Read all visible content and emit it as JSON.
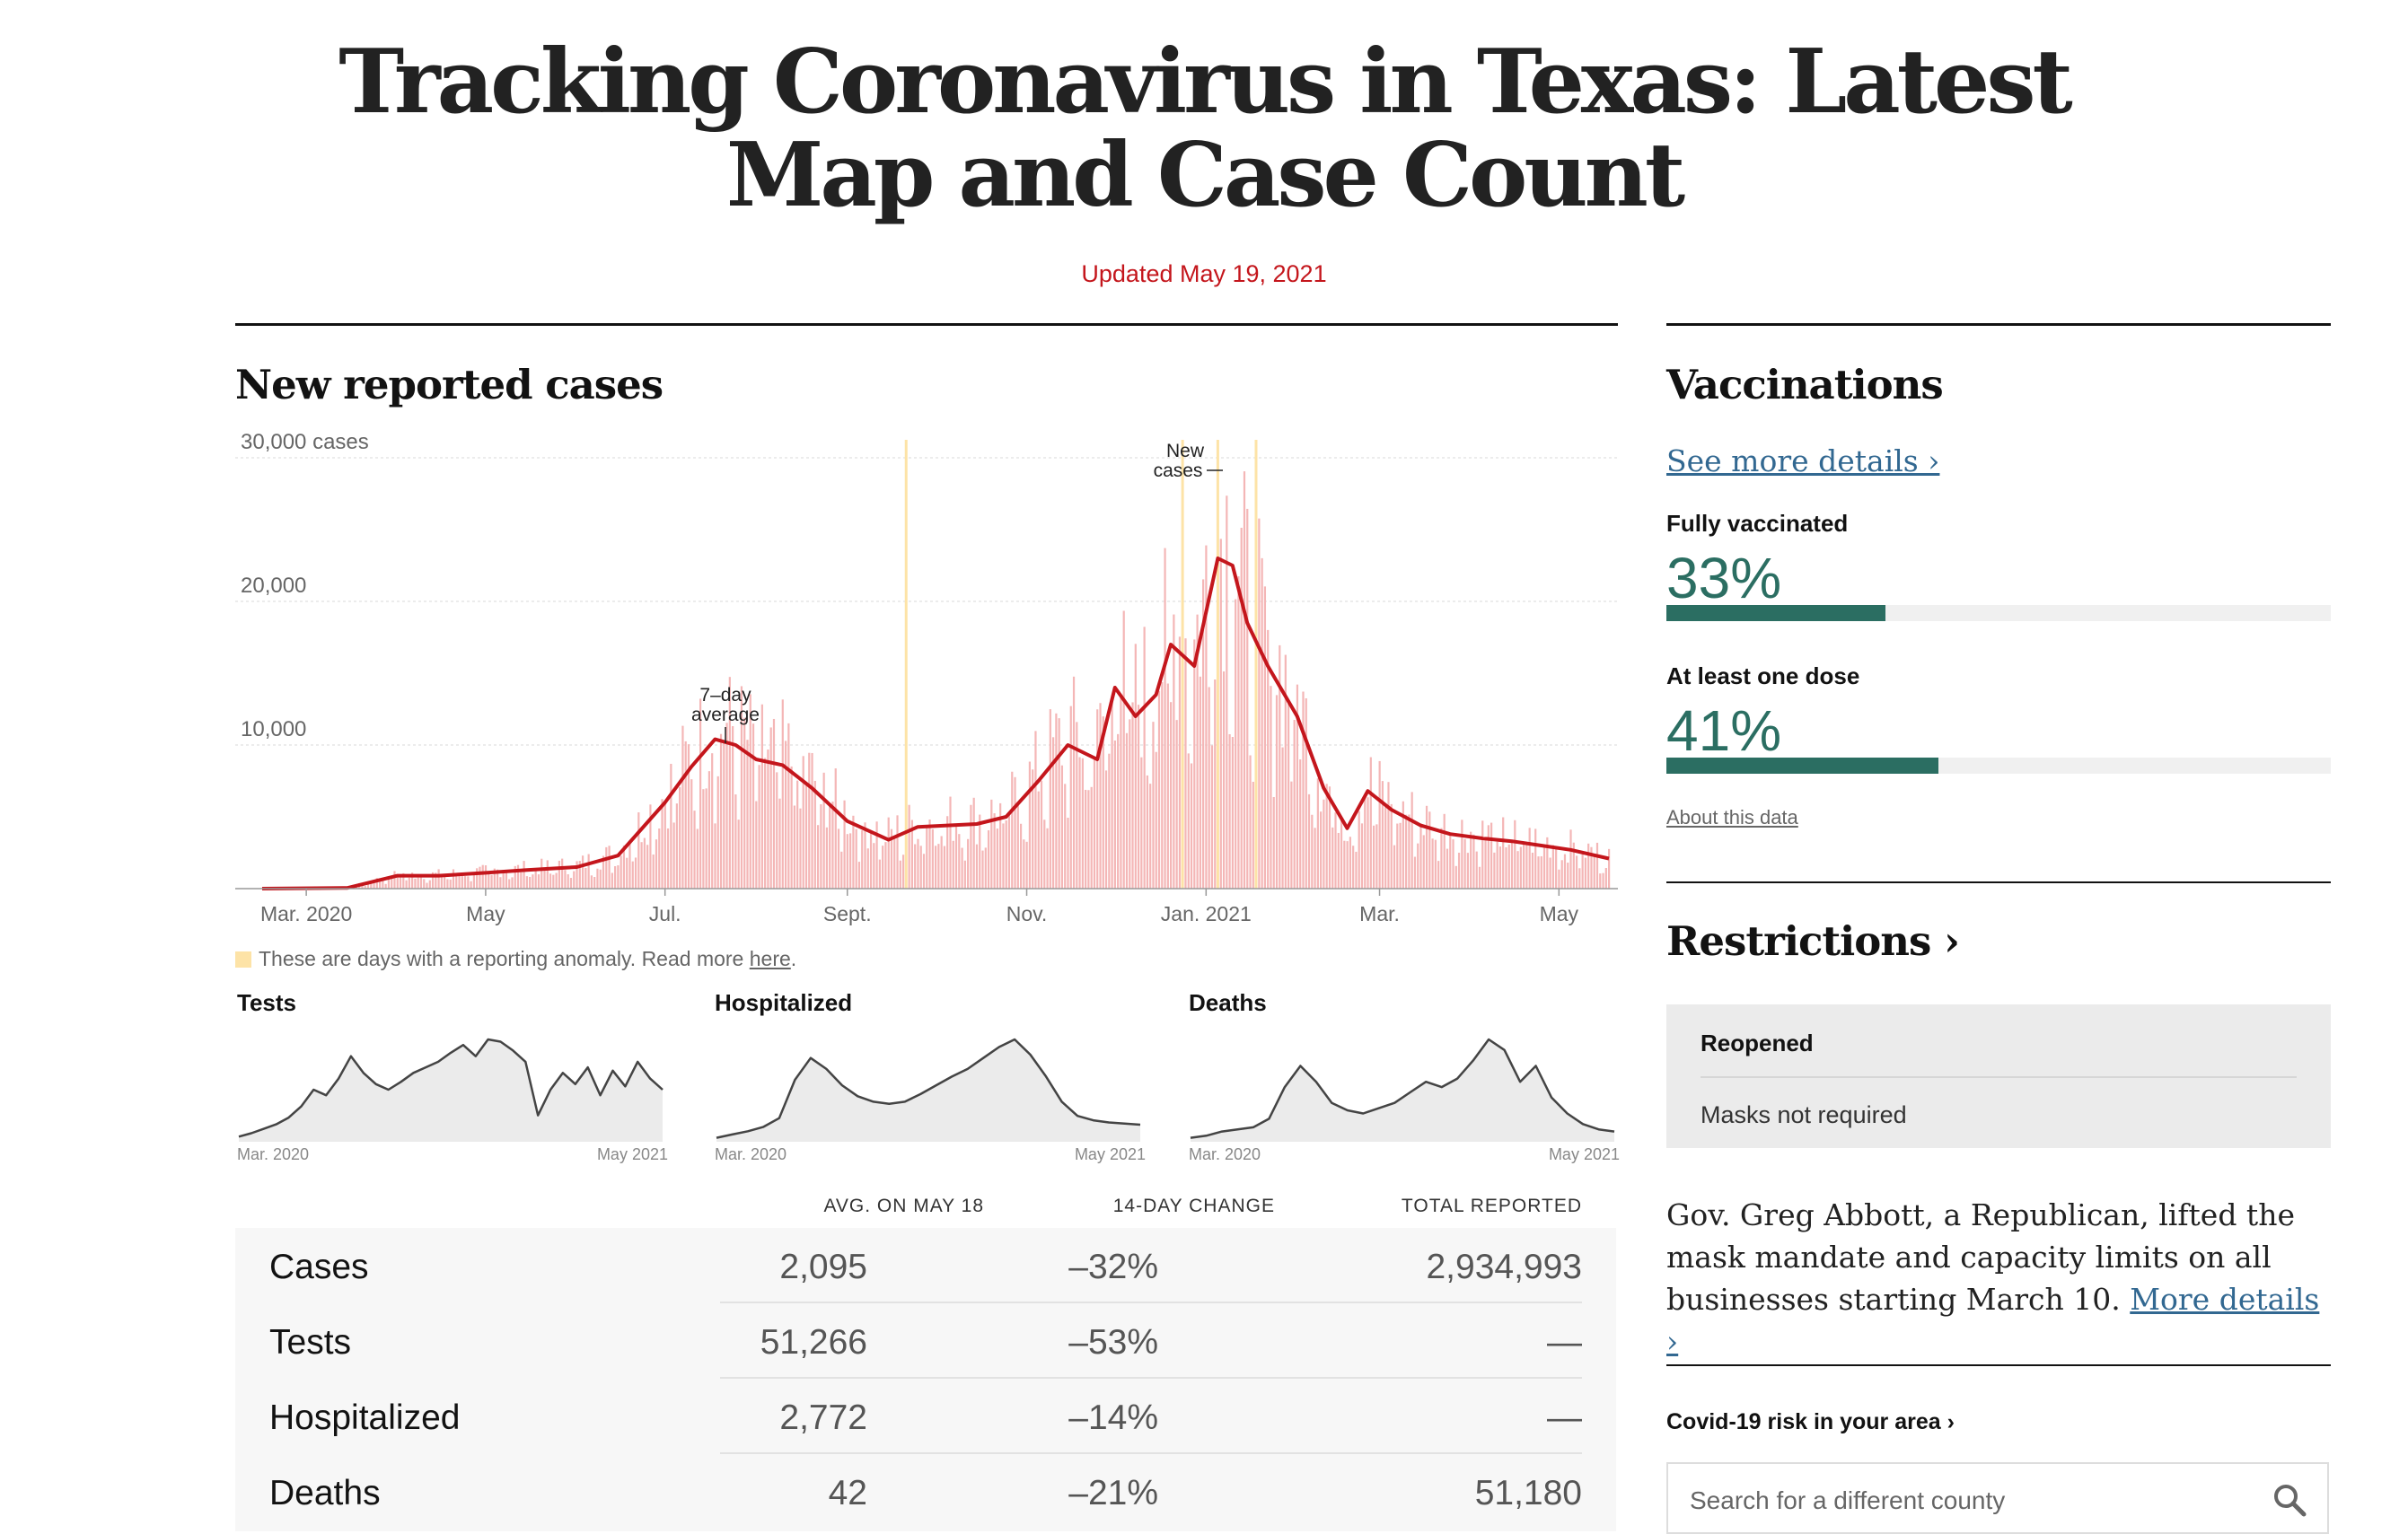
{
  "header": {
    "title_line1": "Tracking Coronavirus in Texas: Latest",
    "title_line2": "Map and Case Count",
    "updated": "Updated May 19, 2021"
  },
  "cases_section": {
    "title": "New reported cases",
    "anomaly_note": "These are days with a reporting anomaly. Read more",
    "anomaly_link": "here",
    "annotation_avg_line1": "7–day",
    "annotation_avg_line2": "average",
    "annotation_new_line1": "New",
    "annotation_new_line2": "cases"
  },
  "chart_data": [
    {
      "type": "bar",
      "title": "New reported cases",
      "ylabel": "cases",
      "ylim": [
        0,
        30000
      ],
      "y_ticks": [
        "30,000 cases",
        "20,000",
        "10,000"
      ],
      "y_tick_values": [
        30000,
        20000,
        10000
      ],
      "x_ticks": [
        "Mar. 2020",
        "May",
        "Jul.",
        "Sept.",
        "Nov.",
        "Jan. 2021",
        "Mar.",
        "May"
      ],
      "x_tick_dates": [
        "2020-03-01",
        "2020-05-01",
        "2020-07-01",
        "2020-09-01",
        "2020-11-01",
        "2021-01-01",
        "2021-03-01",
        "2021-05-01"
      ],
      "date_range": [
        "2020-02-15",
        "2021-05-18"
      ],
      "series": [
        {
          "name": "7-day average",
          "style": "line",
          "color": "#c4161c",
          "x": [
            "2020-02-15",
            "2020-03-15",
            "2020-04-01",
            "2020-04-15",
            "2020-05-01",
            "2020-05-15",
            "2020-06-01",
            "2020-06-15",
            "2020-07-01",
            "2020-07-10",
            "2020-07-18",
            "2020-07-25",
            "2020-08-01",
            "2020-08-10",
            "2020-08-20",
            "2020-09-01",
            "2020-09-15",
            "2020-09-25",
            "2020-10-05",
            "2020-10-15",
            "2020-10-25",
            "2020-11-05",
            "2020-11-15",
            "2020-11-25",
            "2020-12-01",
            "2020-12-08",
            "2020-12-15",
            "2020-12-20",
            "2020-12-28",
            "2021-01-05",
            "2021-01-10",
            "2021-01-15",
            "2021-01-22",
            "2021-02-01",
            "2021-02-10",
            "2021-02-18",
            "2021-02-25",
            "2021-03-05",
            "2021-03-15",
            "2021-03-25",
            "2021-04-05",
            "2021-04-15",
            "2021-04-25",
            "2021-05-05",
            "2021-05-18"
          ],
          "values": [
            0,
            50,
            900,
            900,
            1100,
            1300,
            1500,
            2300,
            6000,
            8500,
            10400,
            10000,
            9000,
            8600,
            7000,
            4700,
            3400,
            4300,
            4400,
            4500,
            5000,
            7500,
            10000,
            9000,
            14000,
            12000,
            13500,
            17000,
            15500,
            23000,
            22500,
            18500,
            15500,
            12000,
            7000,
            4200,
            6800,
            5500,
            4400,
            3800,
            3500,
            3300,
            3000,
            2700,
            2095
          ]
        },
        {
          "name": "New cases",
          "style": "bar",
          "color": "#f4b6b6",
          "anomaly_dates": [
            "2020-09-21",
            "2020-12-24",
            "2021-01-05",
            "2021-01-18"
          ],
          "anomaly_color": "#fde3a7"
        }
      ]
    },
    {
      "type": "area",
      "title": "Tests",
      "x_range": [
        "Mar. 2020",
        "May 2021"
      ],
      "values": [
        3,
        6,
        10,
        14,
        20,
        30,
        45,
        40,
        55,
        75,
        60,
        50,
        45,
        52,
        60,
        65,
        70,
        78,
        85,
        75,
        90,
        88,
        80,
        70,
        22,
        45,
        60,
        50,
        65,
        40,
        62,
        48,
        70,
        55,
        45
      ]
    },
    {
      "type": "area",
      "title": "Hospitalized",
      "x_range": [
        "Mar. 2020",
        "May 2021"
      ],
      "values": [
        2,
        5,
        8,
        12,
        20,
        55,
        75,
        65,
        50,
        40,
        35,
        33,
        35,
        42,
        50,
        58,
        65,
        75,
        85,
        92,
        78,
        58,
        35,
        22,
        18,
        16,
        15,
        14
      ]
    },
    {
      "type": "area",
      "title": "Deaths",
      "x_range": [
        "Mar. 2020",
        "May 2021"
      ],
      "values": [
        2,
        4,
        8,
        10,
        12,
        20,
        50,
        70,
        55,
        35,
        28,
        25,
        30,
        35,
        45,
        55,
        50,
        58,
        75,
        95,
        85,
        55,
        70,
        40,
        25,
        15,
        10,
        8
      ]
    }
  ],
  "mini_charts": {
    "tests": {
      "title": "Tests",
      "start": "Mar. 2020",
      "end": "May 2021"
    },
    "hospitalized": {
      "title": "Hospitalized",
      "start": "Mar. 2020",
      "end": "May 2021"
    },
    "deaths": {
      "title": "Deaths",
      "start": "Mar. 2020",
      "end": "May 2021"
    }
  },
  "table": {
    "headers": [
      "AVG. ON MAY 18",
      "14-DAY CHANGE",
      "TOTAL REPORTED"
    ],
    "rows": [
      {
        "label": "Cases",
        "avg": "2,095",
        "change": "–32%",
        "total": "2,934,993"
      },
      {
        "label": "Tests",
        "avg": "51,266",
        "change": "–53%",
        "total": "—"
      },
      {
        "label": "Hospitalized",
        "avg": "2,772",
        "change": "–14%",
        "total": "—"
      },
      {
        "label": "Deaths",
        "avg": "42",
        "change": "–21%",
        "total": "51,180"
      }
    ]
  },
  "vaccinations": {
    "title": "Vaccinations",
    "details_link": "See more details ›",
    "fully_label": "Fully vaccinated",
    "fully_pct": "33%",
    "fully_fraction": 0.33,
    "dose_label": "At least one dose",
    "dose_pct": "41%",
    "dose_fraction": 0.41,
    "about_link": "About this data",
    "bar_color": "#2b6e62"
  },
  "restrictions": {
    "title": "Restrictions ›",
    "status": "Reopened",
    "masks": "Masks not required",
    "text": "Gov. Greg Abbott, a Republican, lifted the mask mandate and capacity limits on all businesses starting March 10.",
    "more_link": "More details ›"
  },
  "risk": {
    "title": "Covid-19 risk in your area ›",
    "search_placeholder": "Search for a different county",
    "search_icon": "search-icon"
  }
}
